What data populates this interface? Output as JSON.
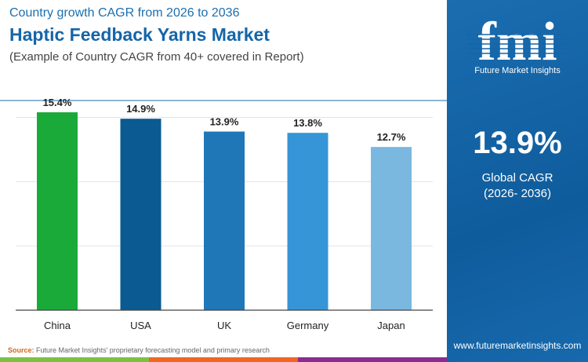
{
  "header": {
    "subtitle": "Country growth CAGR from 2026 to 2036",
    "title": "Haptic Feedback Yarns Market",
    "note": "(Example of Country CAGR from 40+ covered in Report)"
  },
  "panel": {
    "logo_text": "Future Market Insights",
    "logo_letters": "fmi",
    "global_value": "13.9%",
    "global_label": "Global CAGR",
    "global_period": "(2026- 2036)",
    "website": "www.futuremarketinsights.com"
  },
  "footer": {
    "source_label": "Source:",
    "source_text": "Future Market Insights' proprietary forecasting model and primary research",
    "strip_colors": [
      "#7cc142",
      "#f26522",
      "#8b2c8f"
    ]
  },
  "chart_data": {
    "type": "bar",
    "categories": [
      "China",
      "USA",
      "UK",
      "Germany",
      "Japan"
    ],
    "values": [
      15.4,
      14.9,
      13.9,
      13.8,
      12.7
    ],
    "labels": [
      "15.4%",
      "14.9%",
      "13.9%",
      "13.8%",
      "12.7%"
    ],
    "colors": [
      "#1aaa3a",
      "#0b5a91",
      "#1f77b8",
      "#3595d6",
      "#7ab8e0"
    ],
    "ylim": [
      0,
      15.4
    ],
    "gridlines": [
      5,
      10,
      15
    ],
    "grid": true,
    "title": "",
    "xlabel": "",
    "ylabel": ""
  }
}
